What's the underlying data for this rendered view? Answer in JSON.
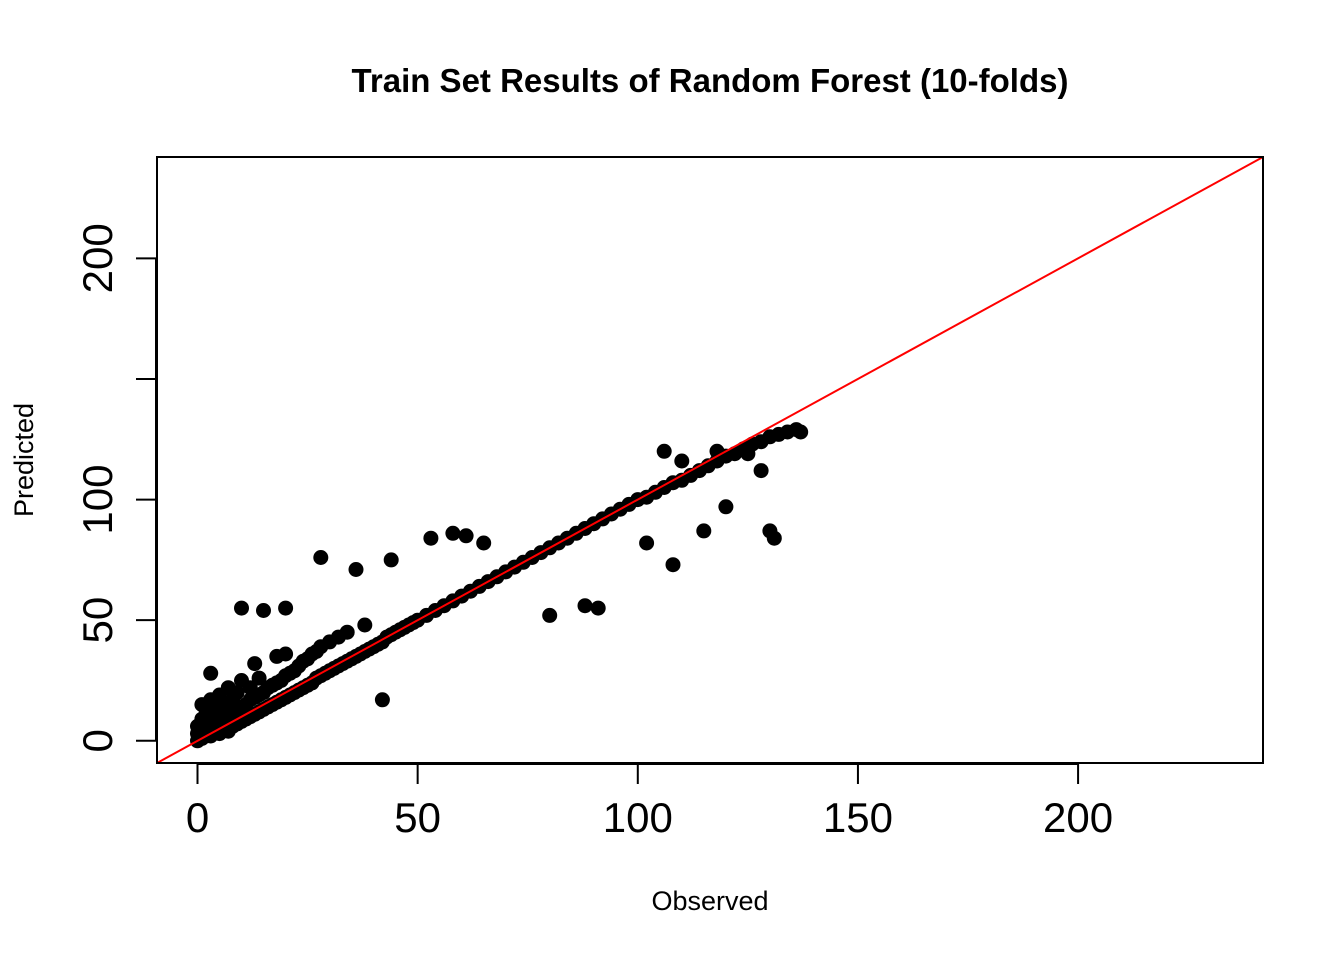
{
  "chart_data": {
    "type": "scatter",
    "title": "Train Set Results of Random Forest (10-folds)",
    "xlabel": "Observed",
    "ylabel": "Predicted",
    "xlim": [
      -9.2,
      242
    ],
    "ylim": [
      -9.2,
      242
    ],
    "x_ticks": [
      0,
      50,
      100,
      150,
      200
    ],
    "x_tick_labels": [
      "0",
      "50",
      "100",
      "150",
      "200"
    ],
    "y_ticks": [
      0,
      50,
      100,
      150,
      200
    ],
    "y_tick_labels": [
      "0",
      "50",
      "100",
      "",
      "200"
    ],
    "grid": false,
    "reference_line": {
      "slope": 1,
      "intercept": 0,
      "color": "#ff0000"
    },
    "point_color": "#000000",
    "series": [
      {
        "points": [
          [
            0,
            0
          ],
          [
            0,
            3
          ],
          [
            0,
            6
          ],
          [
            1,
            1
          ],
          [
            1,
            5
          ],
          [
            1,
            9
          ],
          [
            1,
            15
          ],
          [
            2,
            2
          ],
          [
            2,
            7
          ],
          [
            2,
            12
          ],
          [
            3,
            2
          ],
          [
            3,
            5
          ],
          [
            3,
            10
          ],
          [
            3,
            17
          ],
          [
            3,
            28
          ],
          [
            4,
            4
          ],
          [
            4,
            8
          ],
          [
            4,
            13
          ],
          [
            5,
            3
          ],
          [
            5,
            6
          ],
          [
            5,
            11
          ],
          [
            5,
            19
          ],
          [
            6,
            5
          ],
          [
            6,
            9
          ],
          [
            6,
            15
          ],
          [
            7,
            4
          ],
          [
            7,
            8
          ],
          [
            7,
            13
          ],
          [
            7,
            22
          ],
          [
            8,
            6
          ],
          [
            8,
            10
          ],
          [
            8,
            17
          ],
          [
            9,
            7
          ],
          [
            9,
            12
          ],
          [
            9,
            20
          ],
          [
            10,
            8
          ],
          [
            10,
            14
          ],
          [
            10,
            25
          ],
          [
            11,
            9
          ],
          [
            11,
            15
          ],
          [
            12,
            10
          ],
          [
            12,
            17
          ],
          [
            12,
            22
          ],
          [
            13,
            11
          ],
          [
            13,
            18
          ],
          [
            13,
            32
          ],
          [
            14,
            12
          ],
          [
            14,
            19
          ],
          [
            14,
            26
          ],
          [
            15,
            13
          ],
          [
            15,
            20
          ],
          [
            16,
            14
          ],
          [
            16,
            22
          ],
          [
            17,
            15
          ],
          [
            17,
            23
          ],
          [
            18,
            16
          ],
          [
            18,
            24
          ],
          [
            18,
            35
          ],
          [
            19,
            17
          ],
          [
            19,
            25
          ],
          [
            20,
            18
          ],
          [
            20,
            27
          ],
          [
            20,
            36
          ],
          [
            21,
            19
          ],
          [
            21,
            28
          ],
          [
            22,
            20
          ],
          [
            22,
            29
          ],
          [
            23,
            21
          ],
          [
            23,
            31
          ],
          [
            24,
            22
          ],
          [
            24,
            33
          ],
          [
            25,
            23
          ],
          [
            25,
            34
          ],
          [
            26,
            24
          ],
          [
            26,
            36
          ],
          [
            27,
            26
          ],
          [
            27,
            37
          ],
          [
            28,
            27
          ],
          [
            28,
            39
          ],
          [
            29,
            28
          ],
          [
            30,
            29
          ],
          [
            30,
            41
          ],
          [
            31,
            30
          ],
          [
            32,
            31
          ],
          [
            32,
            43
          ],
          [
            33,
            32
          ],
          [
            34,
            33
          ],
          [
            34,
            45
          ],
          [
            35,
            34
          ],
          [
            36,
            35
          ],
          [
            37,
            36
          ],
          [
            38,
            37
          ],
          [
            38,
            48
          ],
          [
            39,
            38
          ],
          [
            40,
            39
          ],
          [
            41,
            40
          ],
          [
            42,
            41
          ],
          [
            43,
            43
          ],
          [
            44,
            44
          ],
          [
            45,
            45
          ],
          [
            46,
            46
          ],
          [
            47,
            47
          ],
          [
            48,
            48
          ],
          [
            49,
            49
          ],
          [
            50,
            50
          ],
          [
            52,
            52
          ],
          [
            54,
            54
          ],
          [
            56,
            56
          ],
          [
            58,
            58
          ],
          [
            60,
            60
          ],
          [
            62,
            62
          ],
          [
            64,
            64
          ],
          [
            66,
            66
          ],
          [
            68,
            68
          ],
          [
            70,
            70
          ],
          [
            72,
            72
          ],
          [
            74,
            74
          ],
          [
            76,
            76
          ],
          [
            78,
            78
          ],
          [
            80,
            80
          ],
          [
            82,
            82
          ],
          [
            84,
            84
          ],
          [
            86,
            86
          ],
          [
            88,
            88
          ],
          [
            90,
            90
          ],
          [
            92,
            92
          ],
          [
            94,
            94
          ],
          [
            96,
            96
          ],
          [
            98,
            98
          ],
          [
            100,
            100
          ],
          [
            102,
            101
          ],
          [
            104,
            103
          ],
          [
            106,
            105
          ],
          [
            108,
            107
          ],
          [
            110,
            108
          ],
          [
            112,
            110
          ],
          [
            114,
            112
          ],
          [
            116,
            114
          ],
          [
            118,
            116
          ],
          [
            120,
            118
          ],
          [
            122,
            119
          ],
          [
            124,
            121
          ],
          [
            126,
            123
          ],
          [
            128,
            124
          ],
          [
            130,
            126
          ],
          [
            132,
            127
          ],
          [
            134,
            128
          ],
          [
            136,
            129
          ],
          [
            137,
            128
          ],
          [
            10,
            55
          ],
          [
            15,
            54
          ],
          [
            20,
            55
          ],
          [
            28,
            76
          ],
          [
            36,
            71
          ],
          [
            42,
            17
          ],
          [
            44,
            75
          ],
          [
            53,
            84
          ],
          [
            58,
            86
          ],
          [
            61,
            85
          ],
          [
            65,
            82
          ],
          [
            80,
            52
          ],
          [
            88,
            56
          ],
          [
            91,
            55
          ],
          [
            102,
            82
          ],
          [
            108,
            73
          ],
          [
            115,
            87
          ],
          [
            120,
            97
          ],
          [
            130,
            87
          ],
          [
            131,
            84
          ],
          [
            106,
            120
          ],
          [
            110,
            116
          ],
          [
            118,
            120
          ],
          [
            125,
            119
          ],
          [
            128,
            112
          ]
        ]
      }
    ]
  }
}
